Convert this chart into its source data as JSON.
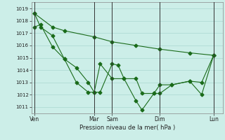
{
  "xlabel": "Pression niveau de la mer( hPa )",
  "ylim": [
    1010.5,
    1019.5
  ],
  "yticks": [
    1011,
    1012,
    1013,
    1014,
    1015,
    1016,
    1017,
    1018,
    1019
  ],
  "bg_color": "#cceee8",
  "grid_color": "#aad8d0",
  "line_color": "#1a6b1a",
  "vline_color": "#333333",
  "x_day_labels": [
    "Ven",
    "Mar",
    "Sam",
    "Dim",
    "Lun"
  ],
  "x_day_positions": [
    0,
    10,
    13,
    21,
    30
  ],
  "xlim": [
    -0.5,
    31.5
  ],
  "line1": {
    "x": [
      0,
      3,
      5,
      10,
      13,
      17,
      21,
      26,
      30
    ],
    "y": [
      1018.6,
      1017.5,
      1017.2,
      1016.7,
      1016.3,
      1016.0,
      1015.7,
      1015.4,
      1015.2
    ]
  },
  "line2": {
    "x": [
      0,
      1,
      3,
      5,
      7,
      9,
      10,
      11,
      13,
      14,
      15,
      17,
      18,
      20,
      21,
      23,
      26,
      28,
      30
    ],
    "y": [
      1017.5,
      1017.7,
      1015.9,
      1014.9,
      1014.2,
      1013.0,
      1012.2,
      1012.2,
      1014.5,
      1014.4,
      1013.3,
      1013.3,
      1012.1,
      1012.1,
      1012.8,
      1012.8,
      1013.1,
      1013.0,
      1015.2
    ]
  },
  "line3": {
    "x": [
      0,
      1,
      3,
      5,
      7,
      9,
      10,
      11,
      13,
      15,
      17,
      18,
      20,
      21,
      23,
      26,
      28,
      30
    ],
    "y": [
      1018.6,
      1017.5,
      1016.8,
      1014.9,
      1013.0,
      1012.2,
      1012.2,
      1014.5,
      1013.3,
      1013.3,
      1011.5,
      1010.75,
      1012.1,
      1012.1,
      1012.8,
      1013.1,
      1012.0,
      1015.2
    ]
  }
}
